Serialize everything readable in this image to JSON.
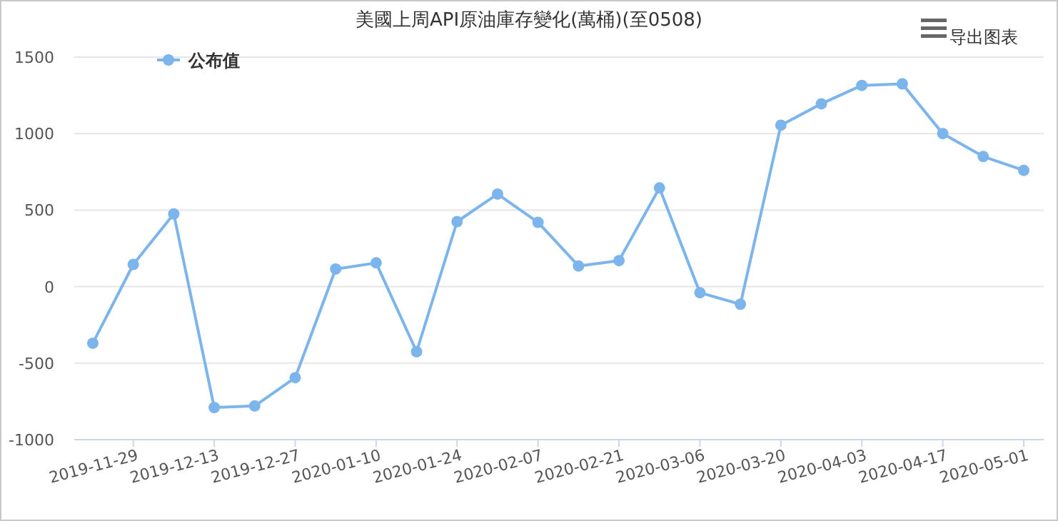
{
  "chart_data": {
    "type": "line",
    "title": "美國上周API原油庫存變化(萬桶)(至0508)",
    "categories": [
      null,
      "2019-11-29",
      null,
      "2019-12-13",
      null,
      "2019-12-27",
      null,
      "2020-01-10",
      null,
      "2020-01-24",
      null,
      "2020-02-07",
      null,
      "2020-02-21",
      null,
      "2020-03-06",
      null,
      "2020-03-20",
      null,
      "2020-04-03",
      null,
      "2020-04-17",
      null,
      "2020-05-01"
    ],
    "series": [
      {
        "name": "公布值",
        "color": "#7cb5ec",
        "values": [
          -370,
          145,
          475,
          -790,
          -780,
          -595,
          115,
          155,
          -425,
          425,
          605,
          420,
          135,
          170,
          645,
          -40,
          -115,
          1055,
          1195,
          1315,
          1325,
          1000,
          850,
          760
        ]
      }
    ],
    "ylim": [
      -1000,
      1500
    ],
    "yticks": [
      -1000,
      -500,
      0,
      500,
      1000,
      1500
    ],
    "grid": "y",
    "legend": "top left",
    "marker": "circle",
    "line_style": "solid",
    "annotations": [
      "导出图表"
    ]
  }
}
